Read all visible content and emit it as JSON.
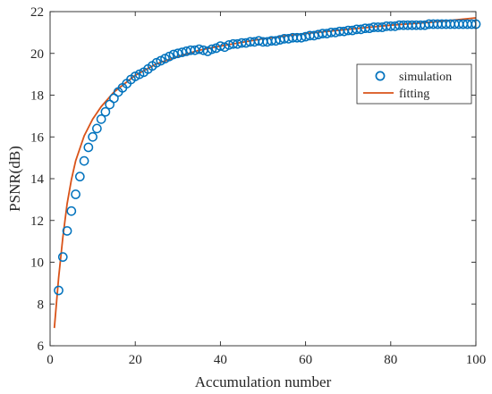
{
  "chart_data": {
    "type": "scatter",
    "title": "",
    "xlabel": "Accumulation number",
    "ylabel": "PSNR(dB)",
    "xlim": [
      0,
      100
    ],
    "ylim": [
      6,
      22
    ],
    "xticks": [
      0,
      20,
      40,
      60,
      80,
      100
    ],
    "yticks": [
      6,
      8,
      10,
      12,
      14,
      16,
      18,
      20,
      22
    ],
    "grid": false,
    "legend_position": "top-right",
    "series": [
      {
        "name": "simulation",
        "style": "markers",
        "marker": "open-circle",
        "color": "#0072BD",
        "x": [
          2,
          3,
          4,
          5,
          6,
          7,
          8,
          9,
          10,
          11,
          12,
          13,
          14,
          15,
          16,
          17,
          18,
          19,
          20,
          21,
          22,
          23,
          24,
          25,
          26,
          27,
          28,
          29,
          30,
          31,
          32,
          33,
          34,
          35,
          36,
          37,
          38,
          39,
          40,
          41,
          42,
          43,
          44,
          45,
          46,
          47,
          48,
          49,
          50,
          51,
          52,
          53,
          54,
          55,
          56,
          57,
          58,
          59,
          60,
          61,
          62,
          63,
          64,
          65,
          66,
          67,
          68,
          69,
          70,
          71,
          72,
          73,
          74,
          75,
          76,
          77,
          78,
          79,
          80,
          81,
          82,
          83,
          84,
          85,
          86,
          87,
          88,
          89,
          90,
          91,
          92,
          93,
          94,
          95,
          96,
          97,
          98,
          99,
          100
        ],
        "y": [
          8.65,
          10.25,
          11.5,
          12.45,
          13.25,
          14.1,
          14.85,
          15.5,
          16.0,
          16.4,
          16.85,
          17.2,
          17.55,
          17.85,
          18.15,
          18.35,
          18.55,
          18.75,
          18.9,
          19.0,
          19.1,
          19.25,
          19.4,
          19.55,
          19.65,
          19.75,
          19.85,
          19.95,
          20.0,
          20.05,
          20.1,
          20.15,
          20.15,
          20.2,
          20.15,
          20.1,
          20.2,
          20.25,
          20.35,
          20.3,
          20.4,
          20.45,
          20.45,
          20.5,
          20.5,
          20.55,
          20.55,
          20.6,
          20.55,
          20.55,
          20.6,
          20.6,
          20.65,
          20.7,
          20.7,
          20.75,
          20.75,
          20.75,
          20.8,
          20.85,
          20.85,
          20.9,
          20.95,
          20.95,
          21.0,
          21.0,
          21.05,
          21.05,
          21.1,
          21.1,
          21.15,
          21.15,
          21.2,
          21.2,
          21.25,
          21.25,
          21.25,
          21.3,
          21.3,
          21.3,
          21.35,
          21.35,
          21.35,
          21.35,
          21.35,
          21.35,
          21.35,
          21.4,
          21.4,
          21.4,
          21.4,
          21.4,
          21.4,
          21.4,
          21.4,
          21.4,
          21.4,
          21.4,
          21.4
        ]
      },
      {
        "name": "fitting",
        "style": "line",
        "color": "#D95319",
        "x": [
          1,
          2,
          3,
          4,
          5,
          6,
          8,
          10,
          12,
          15,
          20,
          25,
          30,
          35,
          40,
          50,
          60,
          70,
          80,
          90,
          100
        ],
        "y": [
          6.85,
          9.25,
          11.2,
          12.8,
          13.95,
          14.85,
          16.05,
          16.85,
          17.45,
          18.15,
          18.95,
          19.5,
          19.85,
          20.15,
          20.35,
          20.7,
          20.95,
          21.15,
          21.35,
          21.5,
          21.7
        ]
      }
    ]
  }
}
